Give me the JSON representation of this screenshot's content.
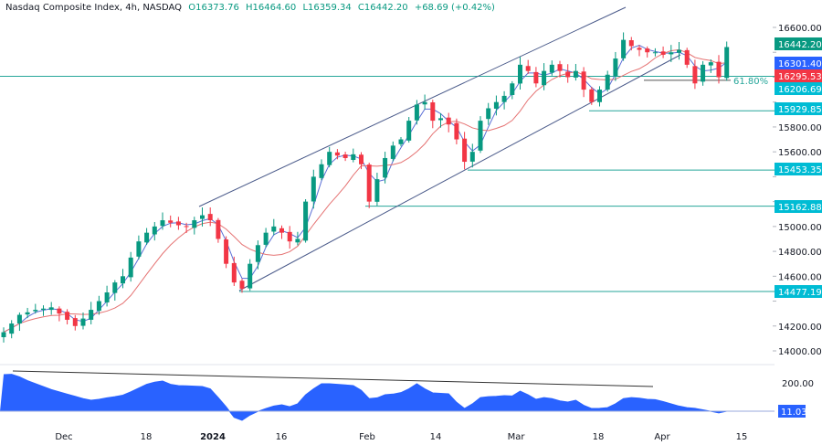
{
  "header": {
    "symbol": "Nasdaq Composite Index, 4h, NASDAQ",
    "open": "O16373.76",
    "high": "H16464.60",
    "low": "L16359.34",
    "close": "C16442.20",
    "change": "+68.69 (+0.42%)"
  },
  "colors": {
    "up": "#089981",
    "down": "#f23645",
    "fast_ma": "#5b6fd6",
    "slow_ma": "#e57373",
    "level": "#26a69a",
    "indicator": "#2962ff"
  },
  "chart_data": [
    {
      "type": "candlestick",
      "title": "Nasdaq Composite Index, 4h, NASDAQ",
      "ylim": [
        13900,
        16750
      ],
      "y_ticks": [
        14000,
        14200,
        14400,
        14600,
        14800,
        15000,
        15200,
        15400,
        15600,
        15800,
        16000,
        16200,
        16400,
        16600
      ],
      "x_tick_labels": [
        "Dec",
        "18",
        "2024",
        "16",
        "Feb",
        "14",
        "Mar",
        "18",
        "Apr",
        "15"
      ],
      "closes": [
        14150,
        14220,
        14290,
        14310,
        14330,
        14340,
        14350,
        14300,
        14250,
        14200,
        14260,
        14330,
        14400,
        14470,
        14550,
        14600,
        14750,
        14880,
        14950,
        15000,
        15050,
        15030,
        15010,
        15000,
        15050,
        15090,
        15050,
        14900,
        14700,
        14550,
        14500,
        14700,
        14850,
        14950,
        15000,
        14950,
        14880,
        14900,
        15200,
        15400,
        15500,
        15600,
        15570,
        15550,
        15580,
        15500,
        15200,
        15380,
        15550,
        15650,
        15700,
        15850,
        15980,
        16000,
        15850,
        15870,
        15820,
        15700,
        15520,
        15600,
        15850,
        15950,
        16000,
        16050,
        16150,
        16300,
        16250,
        16150,
        16250,
        16300,
        16250,
        16200,
        16250,
        16100,
        16000,
        16100,
        16220,
        16350,
        16500,
        16450,
        16420,
        16400,
        16400,
        16380,
        16400,
        16420,
        16300,
        16150,
        16300,
        16320,
        16200,
        16442.2
      ],
      "price_labels": [
        {
          "text": "16442.20",
          "value": 16442.2,
          "color": "#089981"
        },
        {
          "text": "16301.40",
          "value": 16301.4,
          "color": "#2962ff"
        },
        {
          "text": "16295.53",
          "value": 16295.53,
          "color": "#f23645"
        },
        {
          "text": "16206.69",
          "value": 16206.69,
          "color": "#00bcd4"
        },
        {
          "text": "15929.85",
          "value": 15929.85,
          "color": "#00bcd4"
        },
        {
          "text": "15453.35",
          "value": 15453.35,
          "color": "#00bcd4"
        },
        {
          "text": "15162.88",
          "value": 15162.88,
          "color": "#00bcd4"
        },
        {
          "text": "14477.19",
          "value": 14477.19,
          "color": "#00bcd4"
        }
      ],
      "fib_label": "61.80%",
      "fib_value": 16175
    },
    {
      "type": "area",
      "ylim": [
        -80,
        280
      ],
      "y_ticks": [
        200
      ],
      "y_tick_labels": [
        "200.00"
      ],
      "last_value_label": "11.03",
      "values": [
        255,
        257,
        240,
        215,
        195,
        175,
        155,
        140,
        125,
        110,
        95,
        84,
        90,
        100,
        108,
        118,
        140,
        165,
        190,
        205,
        212,
        190,
        182,
        180,
        178,
        176,
        160,
        102,
        40,
        -30,
        -50,
        -15,
        10,
        29,
        45,
        54,
        41,
        60,
        120,
        160,
        194,
        194,
        190,
        186,
        182,
        150,
        95,
        100,
        121,
        125,
        135,
        160,
        194,
        160,
        133,
        130,
        127,
        70,
        29,
        60,
        102,
        108,
        110,
        115,
        112,
        145,
        120,
        90,
        102,
        95,
        80,
        72,
        84,
        50,
        29,
        30,
        35,
        60,
        95,
        102,
        98,
        90,
        88,
        75,
        60,
        45,
        35,
        30,
        20,
        10,
        0,
        11.03
      ]
    }
  ]
}
